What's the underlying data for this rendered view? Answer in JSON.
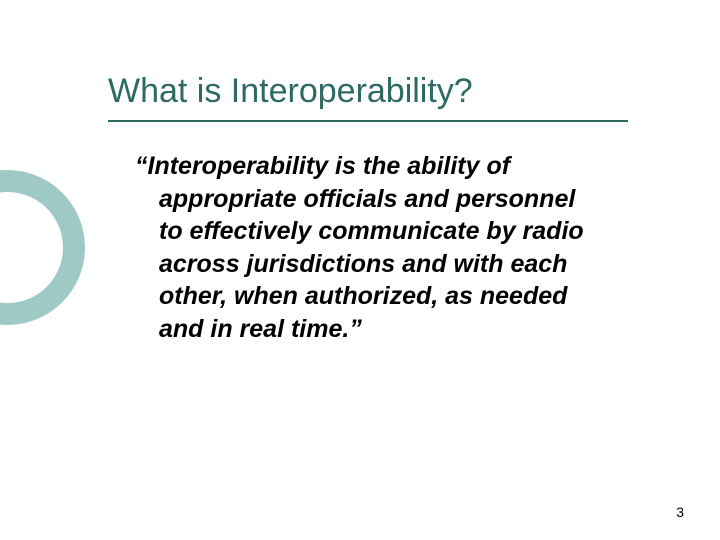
{
  "title": "What is Interoperability?",
  "body": "“Interoperability is the ability of appropriate officials and personnel to effectively communicate by radio across jurisdictions and with each other, when authorized, as needed and in real time.”",
  "page_number": "3",
  "colors": {
    "title_color": "#2d6a63",
    "underline_color": "#2d6a63",
    "body_color": "#000000",
    "circle_border": "#9fc9c4",
    "page_num_color": "#000000",
    "background": "#ffffff"
  },
  "typography": {
    "title_fontsize": 34,
    "body_fontsize": 25,
    "page_num_fontsize": 14
  }
}
